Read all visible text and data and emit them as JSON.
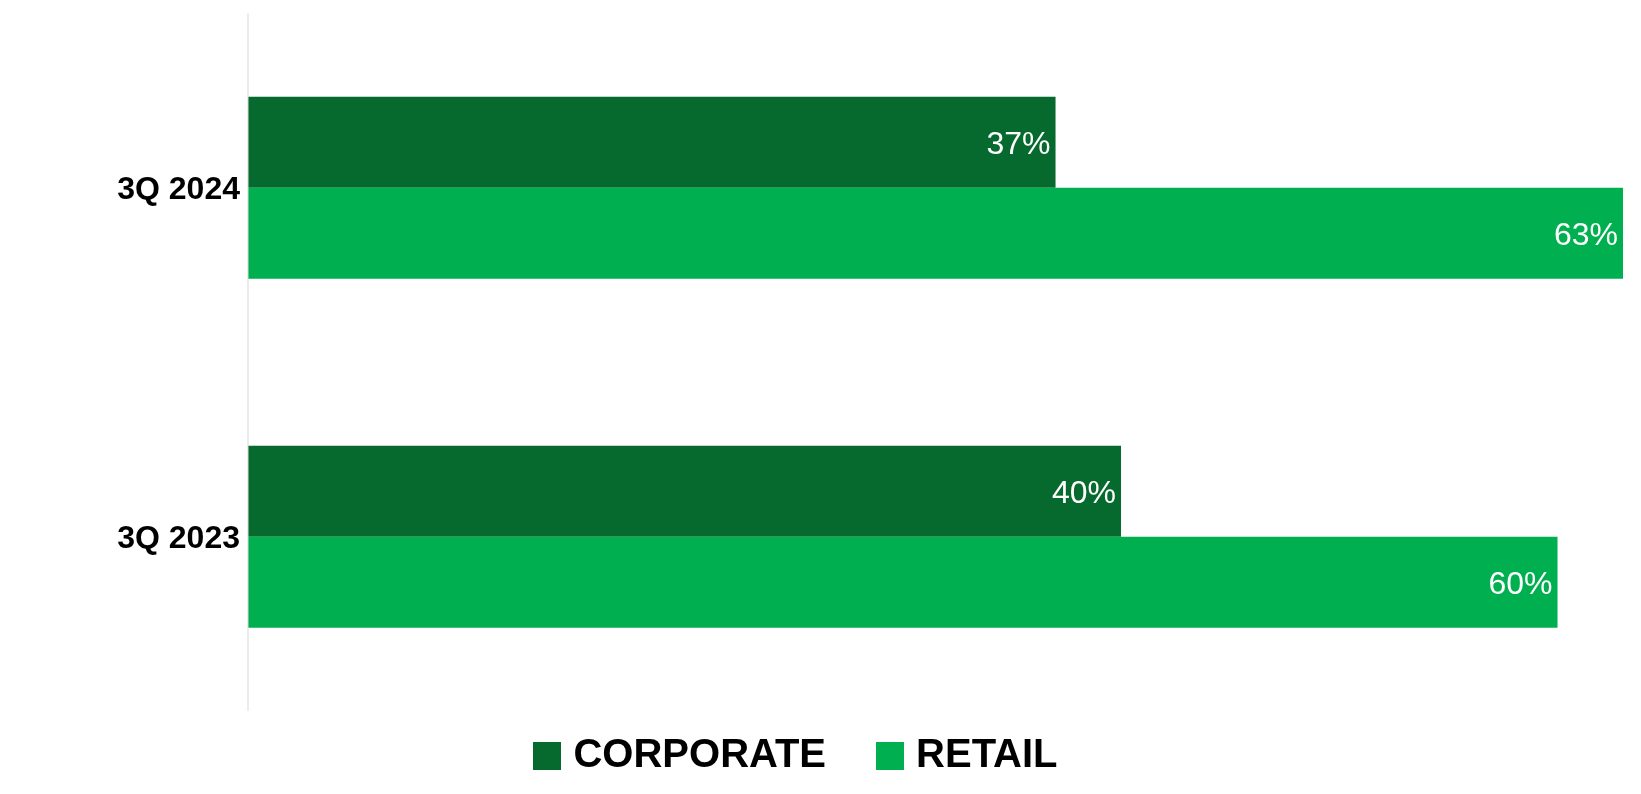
{
  "chart_data": {
    "type": "bar",
    "orientation": "horizontal",
    "categories": [
      "3Q 2024",
      "3Q 2023"
    ],
    "series": [
      {
        "name": "CORPORATE",
        "color": "#066a2e",
        "values": [
          37,
          40
        ],
        "value_labels": [
          "37%",
          "40%"
        ]
      },
      {
        "name": "RETAIL",
        "color": "#00b050",
        "values": [
          63,
          60
        ],
        "value_labels": [
          "63%",
          "60%"
        ]
      }
    ],
    "legend": "bottom",
    "tick_labels": "y"
  }
}
